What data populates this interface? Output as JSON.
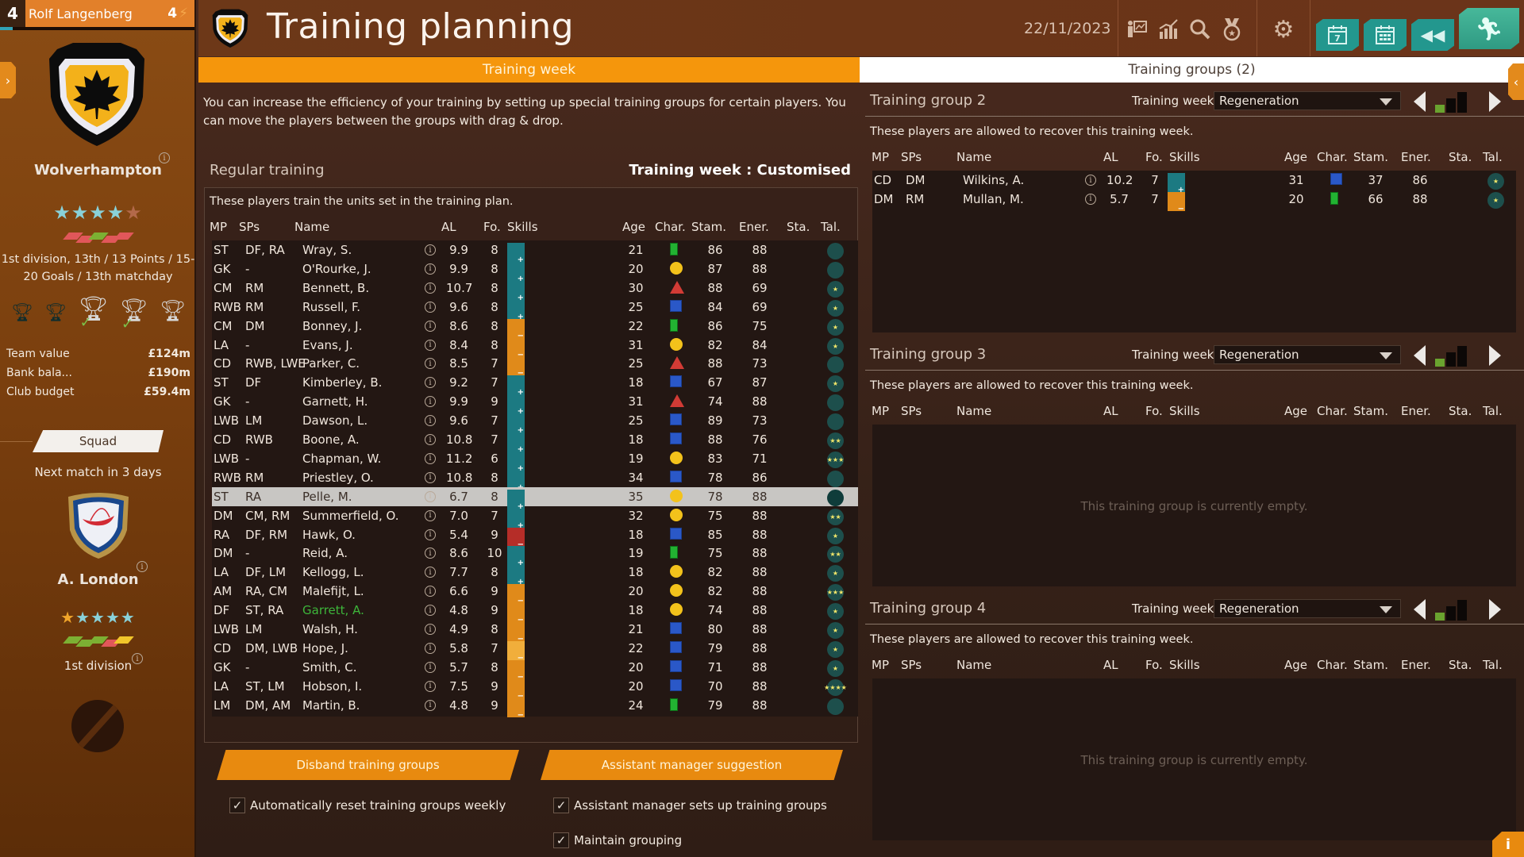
{
  "sidebar": {
    "rank": "4",
    "manager_name": "Rolf Langenberg",
    "manager_level": "4",
    "club_name": "Wolverhampton",
    "club_stars": {
      "filled": 4,
      "total": 5
    },
    "form": [
      "#e1575a",
      "#e1575a",
      "#7cb033",
      "#e1575a",
      "#e1575a"
    ],
    "league_line1": "1st division, 13th / 13 Points / 15-",
    "league_line2": "20 Goals / 13th matchday",
    "trophies": [
      {
        "name": "cup-dark-1",
        "achieved": false
      },
      {
        "name": "cup-dark-2",
        "achieved": false
      },
      {
        "name": "league-trophy",
        "achieved": true
      },
      {
        "name": "cup-silver",
        "achieved": true
      },
      {
        "name": "cup-small",
        "achieved": false
      }
    ],
    "finances": [
      {
        "label": "Team value",
        "value": "£124m"
      },
      {
        "label": "Bank bala...",
        "value": "£190m"
      },
      {
        "label": "Club budget",
        "value": "£59.4m"
      }
    ],
    "squad_button": "Squad",
    "next_match": "Next match in 3 days",
    "opponent_name": "A. London",
    "opponent_stars": {
      "gold": 1,
      "teal": 4
    },
    "opponent_form": [
      "#7cb033",
      "#7cb033",
      "#7cb033",
      "#e1575a",
      "#f1c62a"
    ],
    "opponent_league": "1st division"
  },
  "header": {
    "title": "Training planning",
    "date": "22/11/2023",
    "icons": [
      "trainer-board-icon",
      "statistics-icon",
      "search-icon",
      "medal-icon",
      "settings-icon"
    ],
    "buttons": [
      "calendar-day-icon",
      "calendar-month-icon",
      "rewind-icon",
      "continue-run-icon"
    ],
    "calendar_day": "7"
  },
  "tabs": {
    "left": "Training week",
    "right": "Training groups (2)"
  },
  "intro_text": "You can increase the efficiency of your training by setting up special training groups for certain players. You can move the players between the groups with drag & drop.",
  "regular": {
    "title": "Regular training",
    "week_label": "Training week : Customised",
    "description": "These players train the units set in the training plan.",
    "columns": [
      "MP",
      "SPs",
      "Name",
      "AL",
      "Fo.",
      "Skills",
      "Age",
      "Char.",
      "Stam.",
      "Ener.",
      "Sta.",
      "Tal."
    ],
    "rows": [
      {
        "mp": "ST",
        "sps": "DF, RA",
        "name": "Wray, S.",
        "al": "9.9",
        "fo": "8",
        "skills": "gttt",
        "age": "21",
        "char": "bar",
        "stam": "86",
        "ener": "88",
        "tal": ""
      },
      {
        "mp": "GK",
        "sps": "-",
        "name": "O'Rourke, J.",
        "al": "9.9",
        "fo": "8",
        "skills": "gttt",
        "age": "20",
        "char": "circle",
        "stam": "87",
        "ener": "88",
        "tal": ""
      },
      {
        "mp": "CM",
        "sps": "RM",
        "name": "Bennett, B.",
        "al": "10.7",
        "fo": "8",
        "skills": "ggttt",
        "age": "30",
        "char": "tri",
        "stam": "88",
        "ener": "69",
        "tal": "★"
      },
      {
        "mp": "RWB",
        "sps": "RM",
        "name": "Russell, F.",
        "al": "9.6",
        "fo": "8",
        "skills": "gttt",
        "age": "25",
        "char": "sq",
        "stam": "84",
        "ener": "69",
        "tal": "★"
      },
      {
        "mp": "CM",
        "sps": "DM",
        "name": "Bonney, J.",
        "al": "8.6",
        "fo": "8",
        "skills": "gtto",
        "age": "22",
        "char": "bar",
        "stam": "86",
        "ener": "75",
        "tal": "★"
      },
      {
        "mp": "LA",
        "sps": "-",
        "name": "Evans, J.",
        "al": "8.4",
        "fo": "8",
        "skills": "go",
        "age": "31",
        "char": "circle",
        "stam": "82",
        "ener": "84",
        "tal": "★"
      },
      {
        "mp": "CD",
        "sps": "RWB, LWE",
        "name": "Parker, C.",
        "al": "8.5",
        "fo": "7",
        "skills": "gtto",
        "age": "25",
        "char": "tri",
        "stam": "88",
        "ener": "73",
        "tal": ""
      },
      {
        "mp": "ST",
        "sps": "DF",
        "name": "Kimberley, B.",
        "al": "9.2",
        "fo": "7",
        "skills": "ggttt",
        "age": "18",
        "char": "sq",
        "stam": "67",
        "ener": "87",
        "tal": "★"
      },
      {
        "mp": "GK",
        "sps": "-",
        "name": "Garnett, H.",
        "al": "9.9",
        "fo": "9",
        "skills": "gtt",
        "age": "31",
        "char": "tri",
        "stam": "74",
        "ener": "88",
        "tal": ""
      },
      {
        "mp": "LWB",
        "sps": "LM",
        "name": "Dawson, L.",
        "al": "9.6",
        "fo": "7",
        "skills": "gtt",
        "age": "25",
        "char": "sq",
        "stam": "89",
        "ener": "73",
        "tal": ""
      },
      {
        "mp": "CD",
        "sps": "RWB",
        "name": "Boone, A.",
        "al": "10.8",
        "fo": "7",
        "skills": "ggtt",
        "age": "18",
        "char": "sq",
        "stam": "88",
        "ener": "76",
        "tal": "★★"
      },
      {
        "mp": "LWB",
        "sps": "-",
        "name": "Chapman, W.",
        "al": "11.2",
        "fo": "6",
        "skills": "gtt",
        "age": "19",
        "char": "circle",
        "stam": "83",
        "ener": "71",
        "tal": "★★★"
      },
      {
        "mp": "RWB",
        "sps": "RM",
        "name": "Priestley, O.",
        "al": "10.8",
        "fo": "8",
        "skills": "ggttt",
        "age": "34",
        "char": "sq",
        "stam": "78",
        "ener": "86",
        "tal": ""
      },
      {
        "mp": "ST",
        "sps": "RA",
        "name": "Pelle, M.",
        "al": "6.7",
        "fo": "8",
        "skills": "tt",
        "age": "35",
        "char": "circle",
        "stam": "78",
        "ener": "88",
        "tal": "",
        "selected": true
      },
      {
        "mp": "DM",
        "sps": "CM, RM",
        "name": "Summerfield, O.",
        "al": "7.0",
        "fo": "7",
        "skills": "gttt",
        "age": "32",
        "char": "circle",
        "stam": "75",
        "ener": "88",
        "tal": "★★"
      },
      {
        "mp": "RA",
        "sps": "DF, RM",
        "name": "Hawk, O.",
        "al": "5.4",
        "fo": "9",
        "skills": "tor",
        "age": "18",
        "char": "sq",
        "stam": "85",
        "ener": "88",
        "tal": "★"
      },
      {
        "mp": "DM",
        "sps": "-",
        "name": "Reid, A.",
        "al": "8.6",
        "fo": "10",
        "skills": "gtt",
        "age": "19",
        "char": "bar",
        "stam": "75",
        "ener": "88",
        "tal": "★★"
      },
      {
        "mp": "LA",
        "sps": "DF, LM",
        "name": "Kellogg, L.",
        "al": "7.7",
        "fo": "8",
        "skills": "gt",
        "age": "18",
        "char": "circle",
        "stam": "82",
        "ener": "88",
        "tal": "★"
      },
      {
        "mp": "AM",
        "sps": "RA, CM",
        "name": "Malefijt, L.",
        "al": "6.6",
        "fo": "9",
        "skills": "tyo",
        "age": "20",
        "char": "circle",
        "stam": "82",
        "ener": "88",
        "tal": "★★★"
      },
      {
        "mp": "DF",
        "sps": "ST, RA",
        "name": "Garrett, A.",
        "al": "4.8",
        "fo": "9",
        "skills": "to",
        "age": "18",
        "char": "circle",
        "stam": "74",
        "ener": "88",
        "tal": "★",
        "highlight": "#3db53a"
      },
      {
        "mp": "LWB",
        "sps": "LM",
        "name": "Walsh, H.",
        "al": "4.9",
        "fo": "8",
        "skills": "go",
        "age": "21",
        "char": "sq",
        "stam": "80",
        "ener": "88",
        "tal": "★"
      },
      {
        "mp": "CD",
        "sps": "DM, LWB",
        "name": "Hope, J.",
        "al": "5.8",
        "fo": "7",
        "skills": "gy",
        "age": "22",
        "char": "sq",
        "stam": "79",
        "ener": "88",
        "tal": "★"
      },
      {
        "mp": "GK",
        "sps": "-",
        "name": "Smith, C.",
        "al": "5.7",
        "fo": "8",
        "skills": "to",
        "age": "20",
        "char": "sq",
        "stam": "71",
        "ener": "88",
        "tal": "★"
      },
      {
        "mp": "LA",
        "sps": "ST, LM",
        "name": "Hobson, I.",
        "al": "7.5",
        "fo": "9",
        "skills": "go",
        "age": "20",
        "char": "sq",
        "stam": "70",
        "ener": "88",
        "tal": "★★★★"
      },
      {
        "mp": "LM",
        "sps": "DM, AM",
        "name": "Martin, B.",
        "al": "4.8",
        "fo": "9",
        "skills": "gtoo",
        "age": "24",
        "char": "bar",
        "stam": "79",
        "ener": "88",
        "tal": ""
      }
    ]
  },
  "actions": {
    "disband": "Disband training groups",
    "suggestion": "Assistant manager suggestion",
    "auto_reset": {
      "label": "Automatically reset training groups weekly",
      "checked": true
    },
    "assistant_setup": {
      "label": "Assistant manager sets up training groups",
      "checked": true
    },
    "maintain": {
      "label": "Maintain grouping",
      "checked": true
    }
  },
  "groups": [
    {
      "title": "Training group 2",
      "week_label": "Training week",
      "week_value": "Regeneration",
      "intensity": 1,
      "description": "These players are allowed to recover this training week.",
      "rows": [
        {
          "mp": "CD",
          "sps": "DM",
          "name": "Wilkins, A.",
          "al": "10.2",
          "fo": "7",
          "skills": "ggtt",
          "age": "31",
          "char": "sq",
          "stam": "37",
          "ener": "86",
          "tal": "★"
        },
        {
          "mp": "DM",
          "sps": "RM",
          "name": "Mullan, M.",
          "al": "5.7",
          "fo": "7",
          "skills": "tyo",
          "age": "20",
          "char": "bar",
          "stam": "66",
          "ener": "88",
          "tal": "★"
        }
      ],
      "empty_text": ""
    },
    {
      "title": "Training group 3",
      "week_label": "Training week",
      "week_value": "Regeneration",
      "intensity": 1,
      "description": "These players are allowed to recover this training week.",
      "rows": [],
      "empty_text": "This training group is currently empty."
    },
    {
      "title": "Training group 4",
      "week_label": "Training week",
      "week_value": "Regeneration",
      "intensity": 1,
      "description": "These players are allowed to recover this training week.",
      "rows": [],
      "empty_text": "This training group is currently empty."
    }
  ],
  "colors": {
    "accent_orange": "#f5960c",
    "teal_button": "#23978e",
    "header_brown": "#6d3818",
    "sidebar_brown": "#7a3f0e"
  }
}
